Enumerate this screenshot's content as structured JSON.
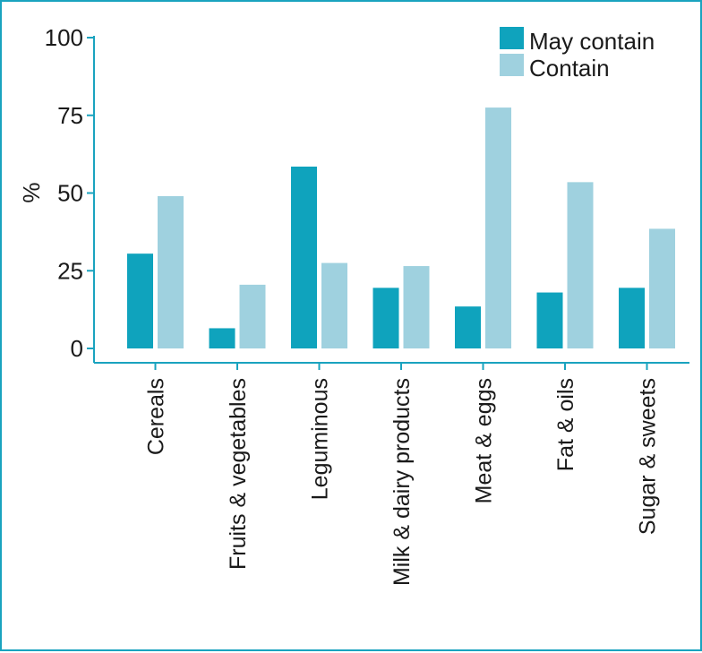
{
  "chart_data": {
    "type": "bar",
    "title": "",
    "xlabel": "",
    "ylabel": "%",
    "ylim": [
      0,
      100
    ],
    "yticks": [
      "0",
      "25",
      "50",
      "75",
      "100"
    ],
    "ytick_values": [
      0,
      25,
      50,
      75,
      100
    ],
    "categories": [
      "Cereals",
      "Fruits & vegetables",
      "Leguminous",
      "Milk & dairy products",
      "Meat & eggs",
      "Fat & oils",
      "Sugar & sweets"
    ],
    "legend_position": "top-right",
    "series": [
      {
        "name": "May contain",
        "color": "#0fa3bd",
        "values": [
          30.5,
          6.5,
          58.5,
          19.5,
          13.5,
          18,
          19.5
        ]
      },
      {
        "name": "Contain",
        "color": "#9fd1df",
        "values": [
          49,
          20.5,
          27.5,
          26.5,
          77.5,
          53.5,
          38.5
        ]
      }
    ]
  },
  "colors": {
    "axis": "#1aa3bf",
    "frame": "#1aa3bf",
    "text": "#1a1a1a"
  }
}
